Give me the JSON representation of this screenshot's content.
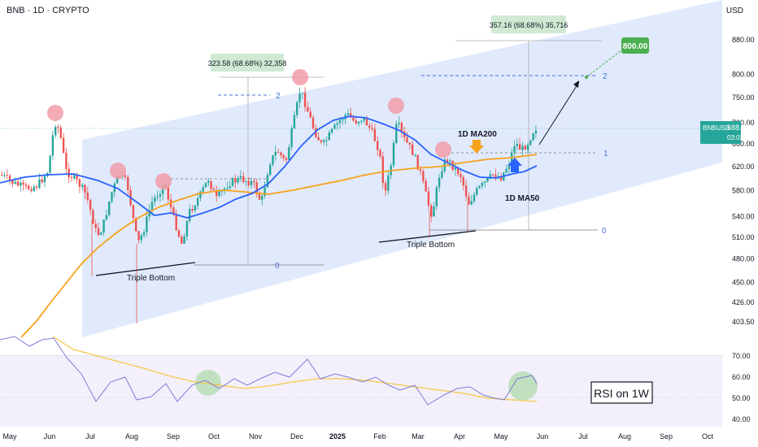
{
  "header": {
    "title": "BNB · 1D · CRYPTO",
    "currency": "USD"
  },
  "colors": {
    "up": "#26a69a",
    "down": "#ef5350",
    "ma200": "#f7a21b",
    "ma50": "#2962ff",
    "channel": "#dbe6fb",
    "rsi": "#7e7bd6",
    "rsi_ma": "#f5c842",
    "target": "#4caf50",
    "marker": "#f19ca9"
  },
  "chart_data": {
    "type": "line",
    "title": "BNB · 1D · CRYPTO",
    "price_axis": {
      "scale": "log",
      "ticks": [
        880.0,
        800.0,
        750.0,
        700.0,
        660.0,
        620.0,
        580.0,
        540.0,
        510.0,
        480.0,
        450.0,
        426.0,
        403.5
      ],
      "last_price": {
        "symbol": "BNBUSD",
        "value": "688.57",
        "countdown": "03:02:32"
      }
    },
    "time_axis": {
      "ticks": [
        "May",
        "Jun",
        "Jul",
        "Aug",
        "Sep",
        "Oct",
        "Nov",
        "Dec",
        "2025",
        "Feb",
        "Mar",
        "Apr",
        "May",
        "Jun",
        "Jul",
        "Aug",
        "Sep",
        "Oct"
      ]
    },
    "rsi_axis": {
      "ticks": [
        70.0,
        60.0,
        50.0,
        40.0
      ]
    },
    "series": [
      {
        "name": "1D MA200",
        "values_approx": [
          400,
          440,
          485,
          520,
          545,
          562,
          580,
          592,
          600,
          610,
          615,
          622,
          628,
          640,
          645
        ]
      },
      {
        "name": "1D MA50",
        "values_approx": [
          595,
          612,
          600,
          560,
          545,
          552,
          575,
          605,
          660,
          680,
          650,
          600,
          595,
          605,
          620
        ]
      }
    ],
    "annotations": {
      "fib_left": {
        "range_label": "323.58 (68.68%) 32,358",
        "level_0": "0",
        "level_2": "2"
      },
      "fib_right": {
        "range_label": "357.16 (68.68%) 35,716",
        "level_0": "0",
        "level_1": "1",
        "level_2": "2"
      },
      "target_label": "800.00",
      "triple_bottom_1": "Triple Bottom",
      "triple_bottom_2": "Triple Bottom",
      "ma200_label": "1D MA200",
      "ma50_label": "1D MA50",
      "rsi_box": "RSI on 1W"
    }
  }
}
